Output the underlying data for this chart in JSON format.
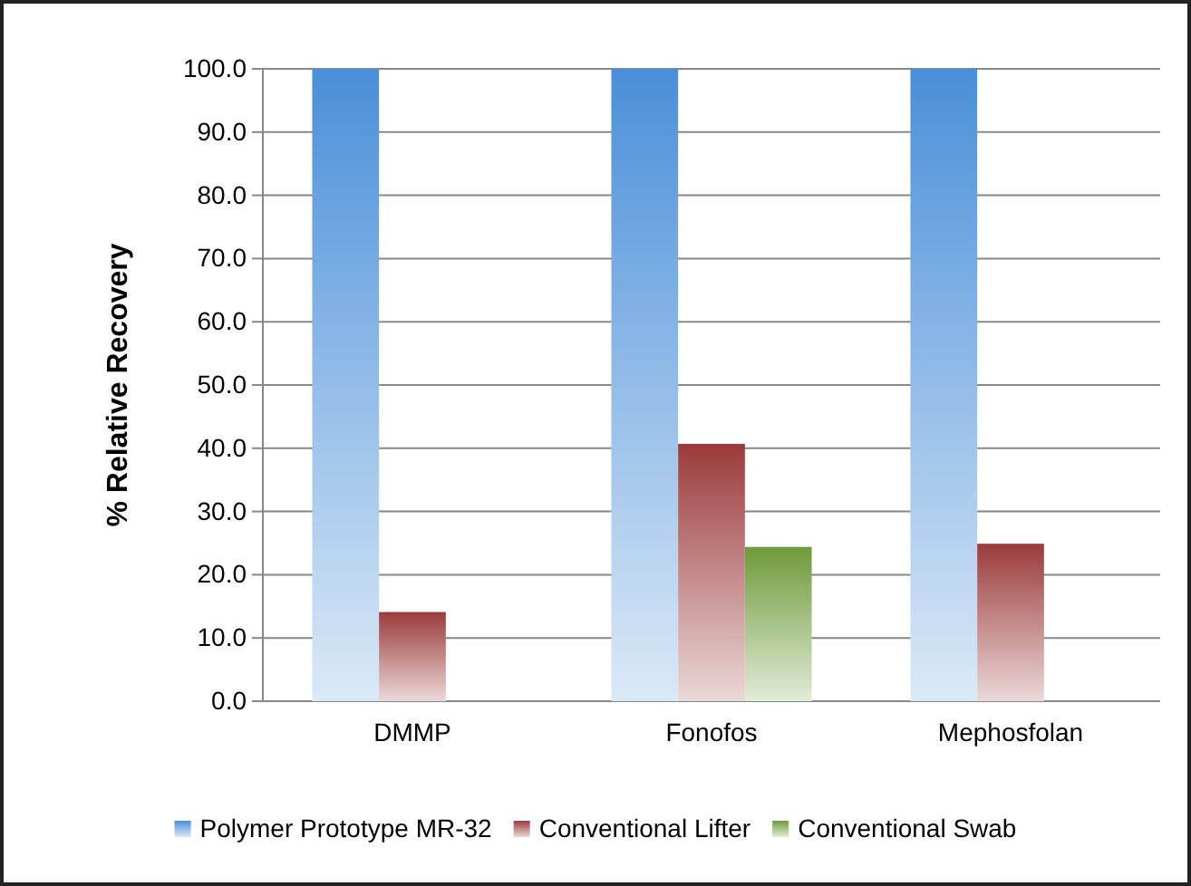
{
  "chart_data": {
    "type": "bar",
    "ylabel": "% Relative Recovery",
    "categories": [
      "DMMP",
      "Fonofos",
      "Mephosfolan"
    ],
    "series": [
      {
        "name": "Polymer Prototype MR-32",
        "color": "#4a8fd9",
        "values": [
          100,
          100,
          100
        ]
      },
      {
        "name": "Conventional Lifter",
        "color": "#9b3b3b",
        "values": [
          14.1,
          40.7,
          24.9
        ]
      },
      {
        "name": "Conventional Swab",
        "color": "#6e9a3a",
        "values": [
          null,
          24.4,
          null
        ]
      }
    ],
    "ylim": [
      0,
      100
    ],
    "yticks": [
      {
        "value": 0,
        "label": "0.0"
      },
      {
        "value": 10,
        "label": "10.0"
      },
      {
        "value": 20,
        "label": "20.0"
      },
      {
        "value": 30,
        "label": "30.0"
      },
      {
        "value": 40,
        "label": "40.0"
      },
      {
        "value": 50,
        "label": "50.0"
      },
      {
        "value": 60,
        "label": "60.0"
      },
      {
        "value": 70,
        "label": "70.0"
      },
      {
        "value": 80,
        "label": "80.0"
      },
      {
        "value": 90,
        "label": "90.0"
      },
      {
        "value": 100,
        "label": "100.0"
      }
    ],
    "grid": "y",
    "legend": "bottom"
  }
}
